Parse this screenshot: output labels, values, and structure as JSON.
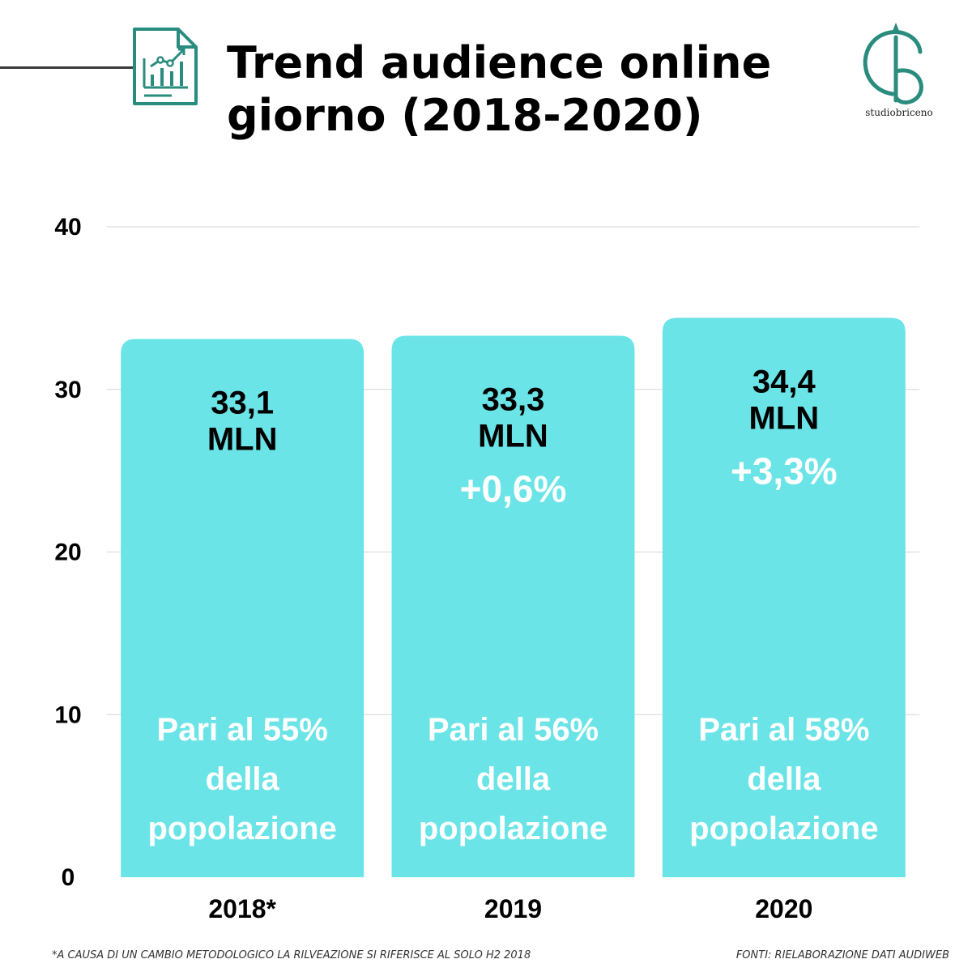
{
  "header": {
    "title_lines": [
      "Trend audience online",
      "giorno (2018-2020)"
    ],
    "logo_text": "studiobriceno"
  },
  "colors": {
    "bar": "#6be4e7",
    "accent": "#2a8c7e",
    "text": "#000000",
    "on_bar_text": "#ffffff",
    "grid": "#d6d6d6"
  },
  "icons": {
    "header_icon": "chart-document-icon",
    "logo_icon": "studiobriceno-logo-icon"
  },
  "chart_data": {
    "type": "bar",
    "categories": [
      "2018*",
      "2019",
      "2020"
    ],
    "values": [
      33.1,
      33.3,
      34.4
    ],
    "value_labels": [
      [
        "33,1",
        "MLN"
      ],
      [
        "33,3",
        "MLN"
      ],
      [
        "34,4",
        "MLN"
      ]
    ],
    "change_labels": [
      "",
      "+0,6%",
      "+3,3%"
    ],
    "share_labels": [
      [
        "Pari al 55%",
        "della",
        "popolazione"
      ],
      [
        "Pari al 56%",
        "della",
        "popolazione"
      ],
      [
        "Pari al 58%",
        "della",
        "popolazione"
      ]
    ],
    "ylim": [
      0,
      40
    ],
    "yticks": [
      0,
      10,
      20,
      30,
      40
    ],
    "grid": true,
    "title": "",
    "xlabel": "",
    "ylabel": ""
  },
  "footnotes": {
    "left": "*A CAUSA DI UN CAMBIO METODOLOGICO LA RILVEAZIONE SI RIFERISCE AL SOLO H2 2018",
    "right": "FONTI: RIELABORAZIONE DATI AUDIWEB"
  }
}
